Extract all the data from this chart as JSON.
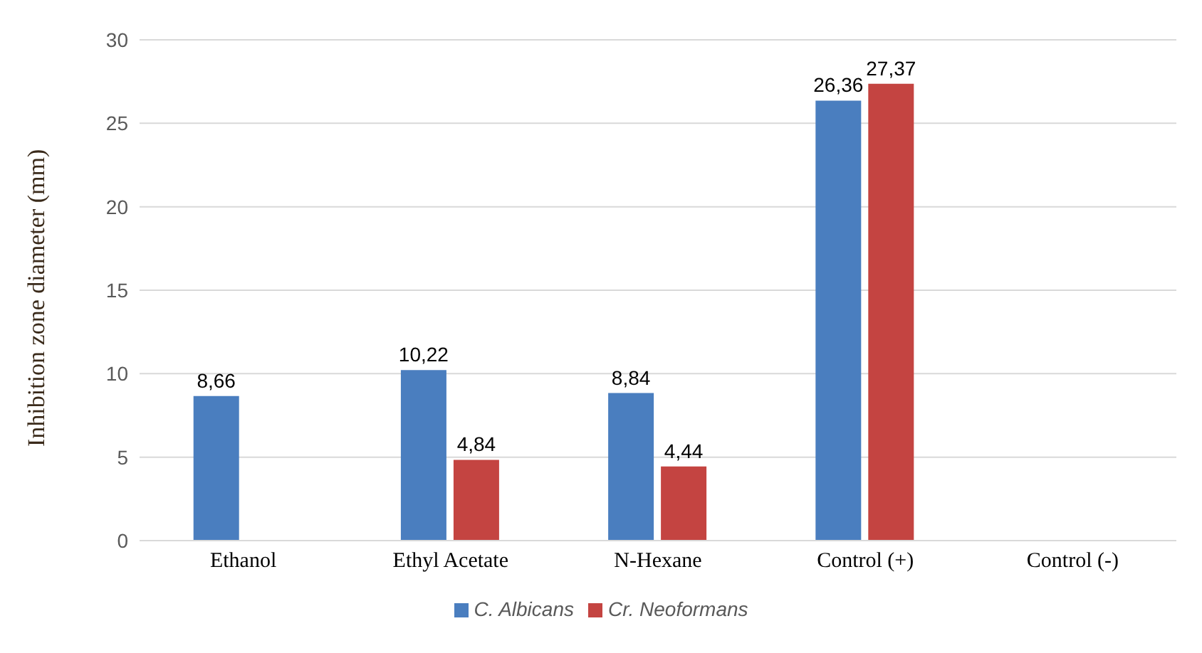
{
  "chart_data": {
    "type": "bar",
    "ylabel": "Inhibition zone diameter (mm)",
    "categories": [
      "Ethanol",
      "Ethyl Acetate",
      "N-Hexane",
      "Control (+)",
      "Control (-)"
    ],
    "series": [
      {
        "name": "C. Albicans",
        "color": "#4a7ebf",
        "values": [
          8.66,
          10.22,
          8.84,
          26.36,
          0
        ],
        "value_labels": [
          "8,66",
          "10,22",
          "8,84",
          "26,36",
          null
        ]
      },
      {
        "name": "Cr. Neoformans",
        "color": "#c44441",
        "values": [
          0,
          4.84,
          4.44,
          27.37,
          0
        ],
        "value_labels": [
          null,
          "4,84",
          "4,44",
          "27,37",
          null
        ]
      }
    ],
    "ylim": [
      0,
      30
    ],
    "yticks": [
      0,
      5,
      10,
      15,
      20,
      25,
      30
    ],
    "grid": "y",
    "legend": "bottom"
  }
}
